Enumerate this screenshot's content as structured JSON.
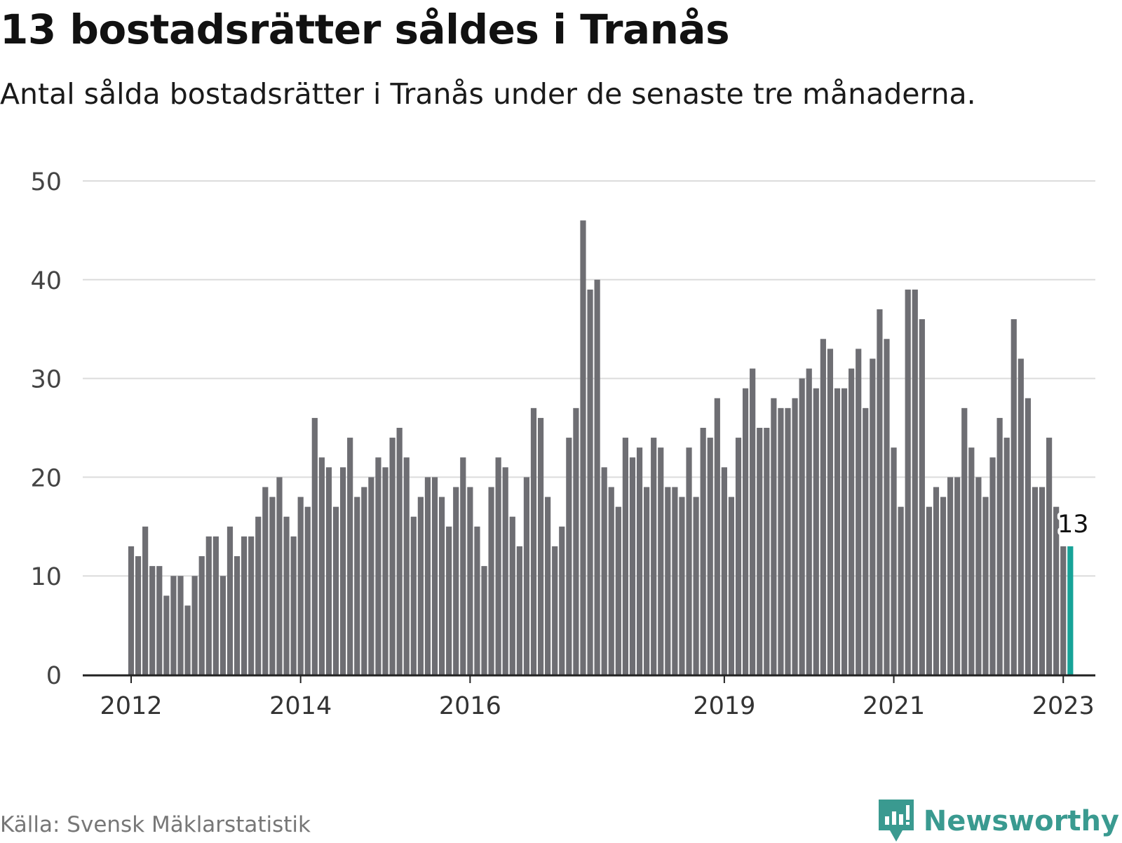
{
  "title": "13 bostadsrätter såldes i Tranås",
  "subtitle": "Antal sålda bostadsrätter i Tranås under de senaste tre månaderna.",
  "source": "Källa: Svensk Mäklarstatistik",
  "brand": {
    "name": "Newsworthy",
    "icon": "newsworthy-logo-icon",
    "color": "#3a9a90"
  },
  "chart_data": {
    "type": "bar",
    "title": "13 bostadsrätter såldes i Tranås",
    "subtitle": "Antal sålda bostadsrätter i Tranås under de senaste tre månaderna.",
    "xlabel": "",
    "ylabel": "",
    "ylim": [
      0,
      50
    ],
    "yticks": [
      0,
      10,
      20,
      30,
      40,
      50
    ],
    "grid": true,
    "legend": "none",
    "colors": {
      "bar": "#6e6e73",
      "highlight": "#17a398",
      "grid": "#dcdcdc",
      "axis": "#222222"
    },
    "x_tick_labels": [
      {
        "label": "2012",
        "index": 0
      },
      {
        "label": "2014",
        "index": 24
      },
      {
        "label": "2016",
        "index": 48
      },
      {
        "label": "2019",
        "index": 84
      },
      {
        "label": "2021",
        "index": 108
      },
      {
        "label": "2023",
        "index": 132
      }
    ],
    "start": "2012-01",
    "values": [
      13,
      12,
      15,
      11,
      11,
      8,
      10,
      10,
      7,
      10,
      12,
      14,
      14,
      10,
      15,
      12,
      14,
      14,
      16,
      19,
      18,
      20,
      16,
      14,
      18,
      17,
      26,
      22,
      21,
      17,
      21,
      24,
      18,
      19,
      20,
      22,
      21,
      24,
      25,
      22,
      16,
      18,
      20,
      20,
      18,
      15,
      19,
      22,
      19,
      15,
      11,
      19,
      22,
      21,
      16,
      13,
      20,
      27,
      26,
      18,
      13,
      15,
      24,
      27,
      46,
      39,
      40,
      21,
      19,
      17,
      24,
      22,
      23,
      19,
      24,
      23,
      19,
      19,
      18,
      23,
      18,
      25,
      24,
      28,
      21,
      18,
      24,
      29,
      31,
      25,
      25,
      28,
      27,
      27,
      28,
      30,
      31,
      29,
      34,
      33,
      29,
      29,
      31,
      33,
      27,
      32,
      37,
      34,
      23,
      17,
      39,
      39,
      36,
      17,
      19,
      18,
      20,
      20,
      27,
      23,
      20,
      18,
      22,
      26,
      24,
      36,
      32,
      28,
      19,
      19,
      24,
      17,
      13,
      13
    ],
    "highlight_index": 133,
    "annotation": {
      "label": "13",
      "value": 13,
      "index": 133
    }
  }
}
